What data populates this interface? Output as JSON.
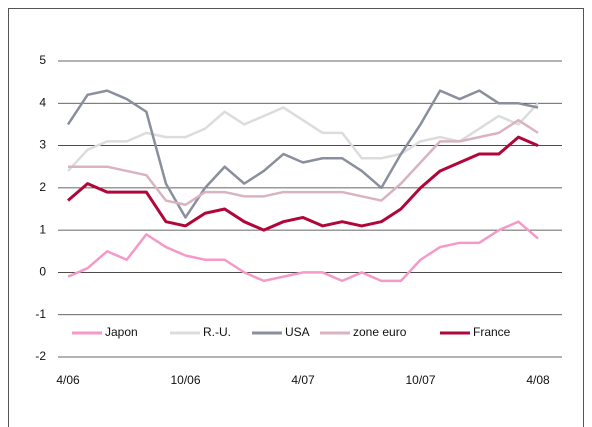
{
  "chart_data": {
    "type": "line",
    "categories": [
      "4/06",
      null,
      null,
      null,
      null,
      null,
      "10/06",
      null,
      null,
      null,
      null,
      null,
      "4/07",
      null,
      null,
      null,
      null,
      null,
      "10/07",
      null,
      null,
      null,
      null,
      null,
      "4/08"
    ],
    "series": [
      {
        "name": "Japon",
        "color": "#f59ac8",
        "values": [
          -0.1,
          0.1,
          0.5,
          0.3,
          0.9,
          0.6,
          0.4,
          0.3,
          0.3,
          0.0,
          -0.2,
          -0.1,
          0.0,
          0.0,
          -0.2,
          0.0,
          -0.2,
          -0.2,
          0.3,
          0.6,
          0.7,
          0.7,
          1.0,
          1.2,
          0.8
        ]
      },
      {
        "name": "R.-U.",
        "color": "#dcdcdc",
        "values": [
          2.4,
          2.9,
          3.1,
          3.1,
          3.3,
          3.2,
          3.2,
          3.4,
          3.8,
          3.5,
          3.7,
          3.9,
          3.6,
          3.3,
          3.3,
          2.7,
          2.7,
          2.8,
          3.1,
          3.2,
          3.1,
          3.4,
          3.7,
          3.5,
          4.0
        ]
      },
      {
        "name": "USA",
        "color": "#8a8f9e",
        "values": [
          3.5,
          4.2,
          4.3,
          4.1,
          3.8,
          2.1,
          1.3,
          2.0,
          2.5,
          2.1,
          2.4,
          2.8,
          2.6,
          2.7,
          2.7,
          2.4,
          2.0,
          2.8,
          3.5,
          4.3,
          4.1,
          4.3,
          4.0,
          4.0,
          3.9
        ]
      },
      {
        "name": "zone euro",
        "color": "#d9b4c0",
        "values": [
          2.5,
          2.5,
          2.5,
          2.4,
          2.3,
          1.7,
          1.6,
          1.9,
          1.9,
          1.8,
          1.8,
          1.9,
          1.9,
          1.9,
          1.9,
          1.8,
          1.7,
          2.1,
          2.6,
          3.1,
          3.1,
          3.2,
          3.3,
          3.6,
          3.3
        ]
      },
      {
        "name": "France",
        "color": "#b0063a",
        "values": [
          1.7,
          2.1,
          1.9,
          1.9,
          1.9,
          1.2,
          1.1,
          1.4,
          1.5,
          1.2,
          1.0,
          1.2,
          1.3,
          1.1,
          1.2,
          1.1,
          1.2,
          1.5,
          2.0,
          2.4,
          2.6,
          2.8,
          2.8,
          3.2,
          3.0
        ]
      }
    ],
    "ylim": [
      -2,
      5
    ],
    "yticks": [
      -2,
      -1,
      0,
      1,
      2,
      3,
      4,
      5
    ],
    "grid": true,
    "legend": "bottom"
  }
}
